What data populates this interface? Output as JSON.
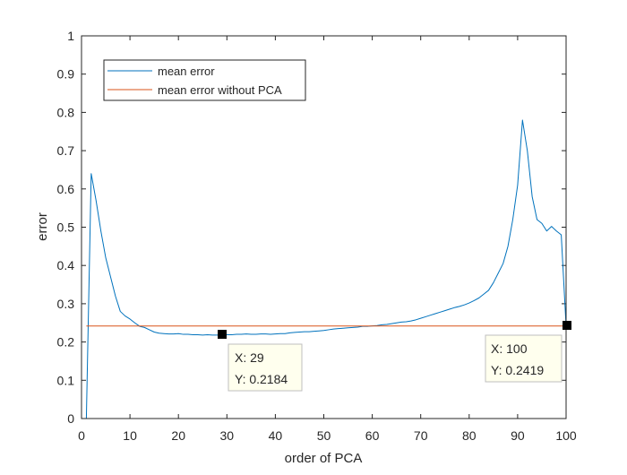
{
  "chart_data": {
    "type": "line",
    "title": "",
    "xlabel": "order of PCA",
    "ylabel": "error",
    "xlim": [
      0,
      100
    ],
    "ylim": [
      0,
      1
    ],
    "xticks": [
      0,
      10,
      20,
      30,
      40,
      50,
      60,
      70,
      80,
      90,
      100
    ],
    "yticks": [
      0,
      0.1,
      0.2,
      0.3,
      0.4,
      0.5,
      0.6,
      0.7,
      0.8,
      0.9,
      1
    ],
    "xtick_labels": [
      "0",
      "10",
      "20",
      "30",
      "40",
      "50",
      "60",
      "70",
      "80",
      "90",
      "100"
    ],
    "ytick_labels": [
      "0",
      "0.1",
      "0.2",
      "0.3",
      "0.4",
      "0.5",
      "0.6",
      "0.7",
      "0.8",
      "0.9",
      "1"
    ],
    "grid": false,
    "legend": {
      "placement": "top-left"
    },
    "series": [
      {
        "name": "mean error",
        "color": "#0072BD",
        "x": [
          1,
          2,
          3,
          4,
          5,
          6,
          7,
          8,
          9,
          10,
          11,
          12,
          13,
          14,
          15,
          16,
          17,
          18,
          19,
          20,
          21,
          22,
          23,
          24,
          25,
          26,
          27,
          28,
          29,
          30,
          31,
          32,
          33,
          34,
          35,
          36,
          37,
          38,
          39,
          40,
          41,
          42,
          43,
          44,
          45,
          46,
          47,
          48,
          49,
          50,
          51,
          52,
          53,
          54,
          55,
          56,
          57,
          58,
          59,
          60,
          61,
          62,
          63,
          64,
          65,
          66,
          67,
          68,
          69,
          70,
          71,
          72,
          73,
          74,
          75,
          76,
          77,
          78,
          79,
          80,
          81,
          82,
          83,
          84,
          85,
          86,
          87,
          88,
          89,
          90,
          91,
          92,
          93,
          94,
          95,
          96,
          97,
          98,
          99,
          100
        ],
        "y": [
          0,
          0.64,
          0.57,
          0.49,
          0.42,
          0.37,
          0.32,
          0.28,
          0.268,
          0.26,
          0.25,
          0.241,
          0.238,
          0.232,
          0.226,
          0.223,
          0.222,
          0.221,
          0.221,
          0.222,
          0.22,
          0.22,
          0.219,
          0.219,
          0.218,
          0.219,
          0.218,
          0.218,
          0.2184,
          0.219,
          0.219,
          0.22,
          0.22,
          0.221,
          0.22,
          0.22,
          0.221,
          0.221,
          0.22,
          0.221,
          0.222,
          0.222,
          0.224,
          0.225,
          0.226,
          0.227,
          0.227,
          0.228,
          0.229,
          0.23,
          0.232,
          0.234,
          0.235,
          0.236,
          0.237,
          0.238,
          0.239,
          0.241,
          0.241,
          0.242,
          0.243,
          0.245,
          0.246,
          0.248,
          0.25,
          0.252,
          0.253,
          0.255,
          0.258,
          0.262,
          0.266,
          0.27,
          0.274,
          0.278,
          0.282,
          0.286,
          0.29,
          0.293,
          0.297,
          0.302,
          0.308,
          0.315,
          0.325,
          0.335,
          0.355,
          0.38,
          0.405,
          0.45,
          0.52,
          0.61,
          0.78,
          0.7,
          0.58,
          0.52,
          0.51,
          0.49,
          0.502,
          0.49,
          0.48,
          0.2419
        ]
      },
      {
        "name": "mean error without PCA",
        "color": "#D95319",
        "x": [
          1,
          100
        ],
        "y": [
          0.2419,
          0.2419
        ]
      }
    ],
    "datatips": [
      {
        "x": 29,
        "y": 0.2184,
        "line1": "X: 29",
        "line2": "Y: 0.2184"
      },
      {
        "x": 100,
        "y": 0.2419,
        "line1": "X: 100",
        "line2": "Y: 0.2419"
      }
    ]
  }
}
